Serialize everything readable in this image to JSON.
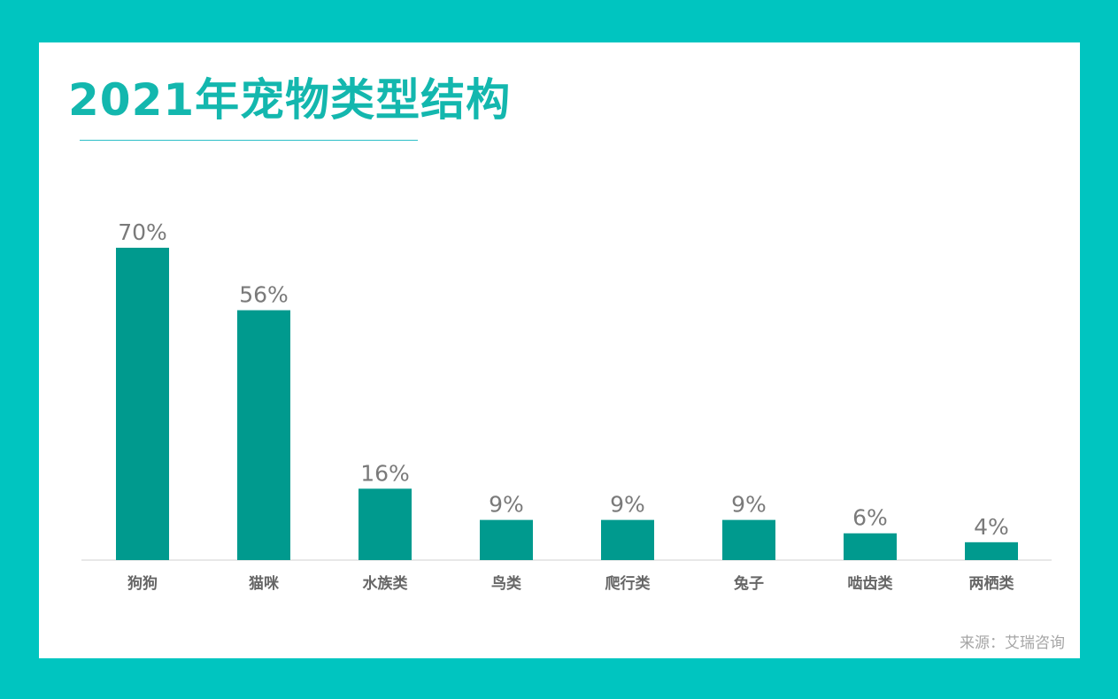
{
  "page": {
    "title": "2021年宠物类型结构",
    "source": "来源：艾瑞咨询"
  },
  "colors": {
    "background": "#00c5c0",
    "card": "#ffffff",
    "title": "#13b7ae",
    "bar": "#009a8e",
    "value_label": "#7a7a7a",
    "category_label": "#666666",
    "axis": "#d0d0d0",
    "source": "#a5a5a5"
  },
  "chart_data": {
    "type": "bar",
    "title": "2021年宠物类型结构",
    "categories": [
      "狗狗",
      "猫咪",
      "水族类",
      "鸟类",
      "爬行类",
      "兔子",
      "啮齿类",
      "两栖类"
    ],
    "values": [
      70,
      56,
      16,
      9,
      9,
      9,
      6,
      4
    ],
    "value_labels": [
      "70%",
      "56%",
      "16%",
      "9%",
      "9%",
      "9%",
      "6%",
      "4%"
    ],
    "unit": "%",
    "xlabel": "",
    "ylabel": "",
    "ylim": [
      0,
      70
    ],
    "grid": false,
    "legend": "none"
  }
}
